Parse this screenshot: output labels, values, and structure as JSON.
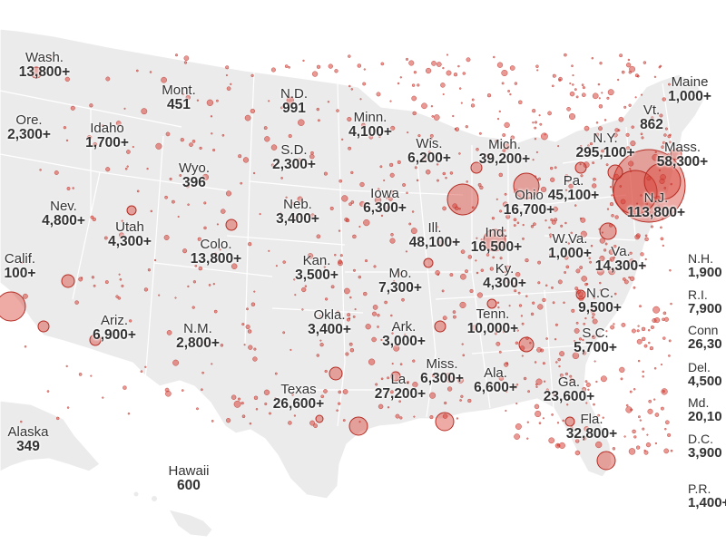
{
  "colors": {
    "land": "#ebebeb",
    "border": "#ffffff",
    "bubble_fill": "#d9443a",
    "bubble_stroke": "#b52b22",
    "text": "#333333"
  },
  "states": [
    {
      "id": "wa",
      "name": "Wash.",
      "value": "13,800+"
    },
    {
      "id": "or",
      "name": "Ore.",
      "value": "2,300+"
    },
    {
      "id": "ca",
      "name": "Calif.",
      "value": "100+"
    },
    {
      "id": "id",
      "name": "Idaho",
      "value": "1,700+"
    },
    {
      "id": "nv",
      "name": "Nev.",
      "value": "4,800+"
    },
    {
      "id": "mt",
      "name": "Mont.",
      "value": "451"
    },
    {
      "id": "wy",
      "name": "Wyo.",
      "value": "396"
    },
    {
      "id": "ut",
      "name": "Utah",
      "value": "4,300+"
    },
    {
      "id": "co",
      "name": "Colo.",
      "value": "13,800+"
    },
    {
      "id": "az",
      "name": "Ariz.",
      "value": "6,900+"
    },
    {
      "id": "nm",
      "name": "N.M.",
      "value": "2,800+"
    },
    {
      "id": "nd",
      "name": "N.D.",
      "value": "991"
    },
    {
      "id": "sd",
      "name": "S.D.",
      "value": "2,300+"
    },
    {
      "id": "ne",
      "name": "Neb.",
      "value": "3,400+"
    },
    {
      "id": "ks",
      "name": "Kan.",
      "value": "3,500+"
    },
    {
      "id": "ok",
      "name": "Okla.",
      "value": "3,400+"
    },
    {
      "id": "tx",
      "name": "Texas",
      "value": "26,600+"
    },
    {
      "id": "mn",
      "name": "Minn.",
      "value": "4,100+"
    },
    {
      "id": "ia",
      "name": "Iowa",
      "value": "6,300+"
    },
    {
      "id": "mo",
      "name": "Mo.",
      "value": "7,300+"
    },
    {
      "id": "ar",
      "name": "Ark.",
      "value": "3,000+"
    },
    {
      "id": "la",
      "name": "La.",
      "value": "27,200+"
    },
    {
      "id": "wi",
      "name": "Wis.",
      "value": "6,200+"
    },
    {
      "id": "il",
      "name": "Ill.",
      "value": "48,100+"
    },
    {
      "id": "mi",
      "name": "Mich.",
      "value": "39,200+"
    },
    {
      "id": "in",
      "name": "Ind.",
      "value": "16,500+"
    },
    {
      "id": "oh",
      "name": "Ohio",
      "value": "16,700+"
    },
    {
      "id": "ky",
      "name": "Ky.",
      "value": "4,300+"
    },
    {
      "id": "tn",
      "name": "Tenn.",
      "value": "10,000+"
    },
    {
      "id": "ms",
      "name": "Miss.",
      "value": "6,300+"
    },
    {
      "id": "al",
      "name": "Ala.",
      "value": "6,600+"
    },
    {
      "id": "ga",
      "name": "Ga.",
      "value": "23,600+"
    },
    {
      "id": "fl",
      "name": "Fla.",
      "value": "32,800+"
    },
    {
      "id": "sc",
      "name": "S.C.",
      "value": "5,700+"
    },
    {
      "id": "nc",
      "name": "N.C.",
      "value": "9,500+"
    },
    {
      "id": "va",
      "name": "Va.",
      "value": "14,300+"
    },
    {
      "id": "wv",
      "name": "W.Va.",
      "value": "1,000+"
    },
    {
      "id": "pa",
      "name": "Pa.",
      "value": "45,100+"
    },
    {
      "id": "ny",
      "name": "N.Y.",
      "value": "295,100+"
    },
    {
      "id": "nj",
      "name": "N.J.",
      "value": "113,800+"
    },
    {
      "id": "vt",
      "name": "Vt.",
      "value": "862"
    },
    {
      "id": "me",
      "name": "Maine",
      "value": "1,000+"
    },
    {
      "id": "ma",
      "name": "Mass.",
      "value": "58,300+"
    },
    {
      "id": "ak",
      "name": "Alaska",
      "value": "349"
    },
    {
      "id": "hi",
      "name": "Hawaii",
      "value": "600"
    }
  ],
  "side_states": [
    {
      "id": "nh",
      "name": "N.H.",
      "value": "1,900"
    },
    {
      "id": "ri",
      "name": "R.I.",
      "value": "7,900"
    },
    {
      "id": "ct",
      "name": "Conn",
      "value": "26,30"
    },
    {
      "id": "de",
      "name": "Del.",
      "value": "4,500"
    },
    {
      "id": "md",
      "name": "Md.",
      "value": "20,10"
    },
    {
      "id": "dc",
      "name": "D.C.",
      "value": "3,900"
    },
    {
      "id": "pr",
      "name": "P.R.",
      "value": "1,400+"
    }
  ]
}
